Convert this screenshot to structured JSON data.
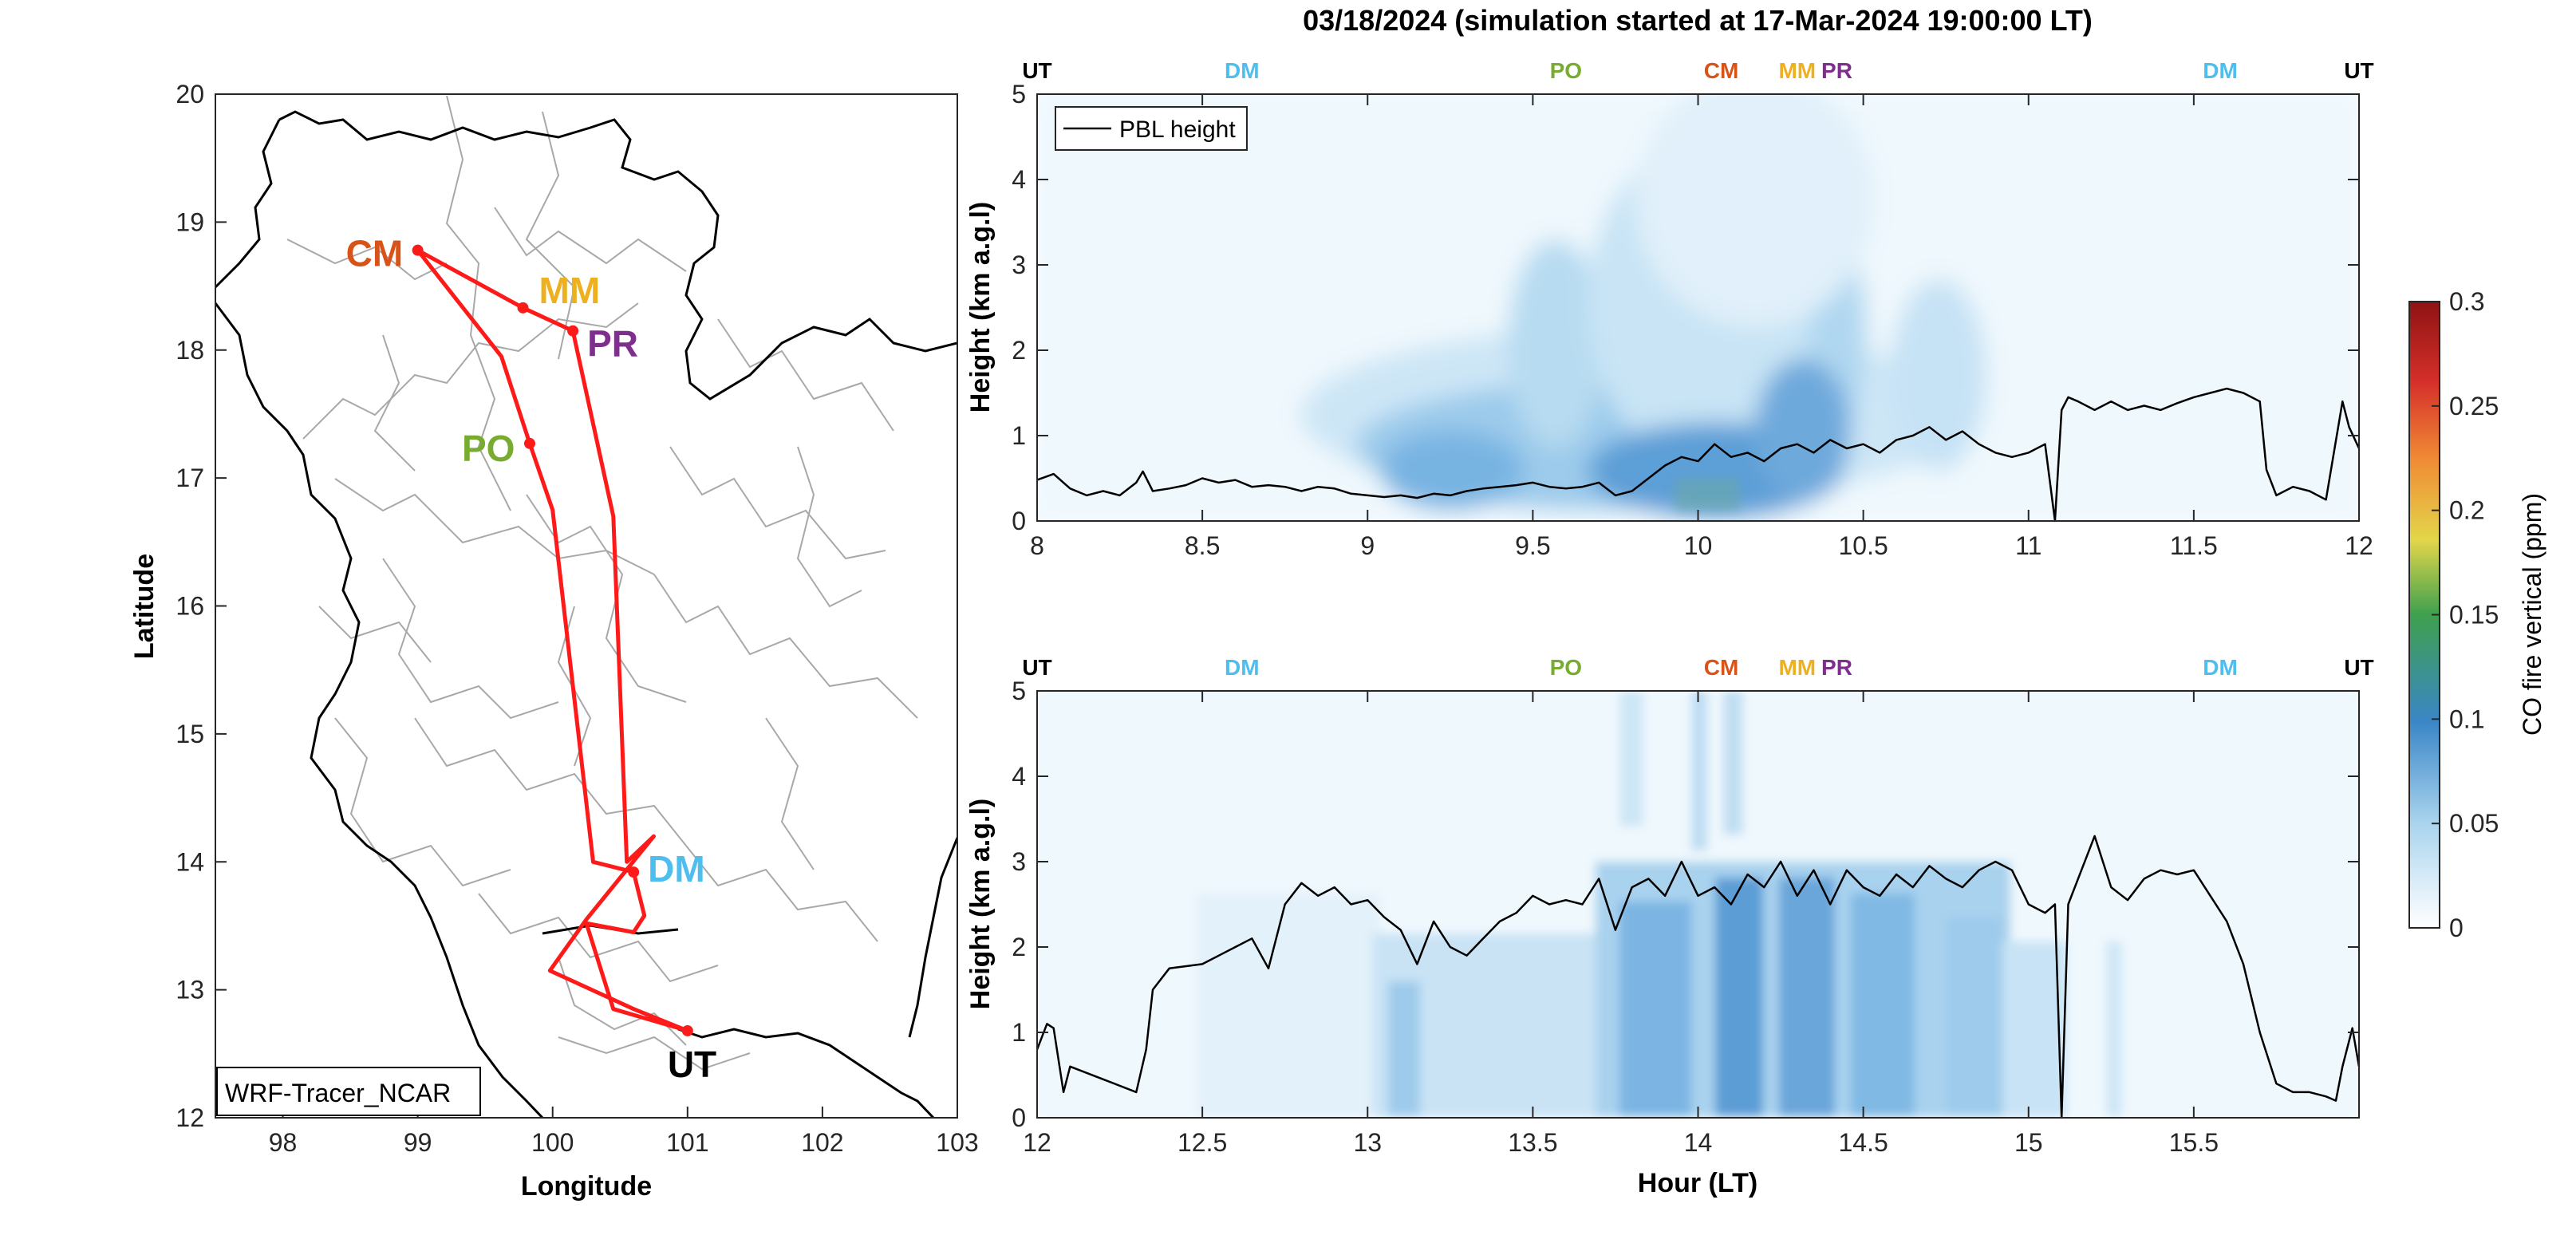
{
  "title": "03/18/2024 (simulation started at 17-Mar-2024 19:00:00 LT)",
  "colors": {
    "UT": "#000000",
    "DM": "#4DBEEE",
    "PO": "#77AC30",
    "CM": "#D95319",
    "MM": "#EDB120",
    "PR": "#7E2F8E",
    "route": "#ff1a1a",
    "pbl": "#000000"
  },
  "chart_data": [
    {
      "type": "line",
      "panel": "map",
      "xlabel": "Longitude",
      "ylabel": "Latitude",
      "xlim": [
        97.5,
        103
      ],
      "ylim": [
        12,
        20
      ],
      "xticks": [
        "98",
        "99",
        "100",
        "101",
        "102",
        "103"
      ],
      "yticks": [
        "12",
        "13",
        "14",
        "15",
        "16",
        "17",
        "18",
        "19",
        "20"
      ],
      "annotation": "WRF-Tracer_NCAR",
      "sites": [
        {
          "name": "CM",
          "lon": 99.0,
          "lat": 18.78
        },
        {
          "name": "MM",
          "lon": 99.78,
          "lat": 18.33
        },
        {
          "name": "PR",
          "lon": 100.15,
          "lat": 18.15
        },
        {
          "name": "PO",
          "lon": 99.83,
          "lat": 17.27
        },
        {
          "name": "DM",
          "lon": 100.6,
          "lat": 13.92
        },
        {
          "name": "UT",
          "lon": 101.0,
          "lat": 12.68
        }
      ],
      "route": [
        [
          101.0,
          12.68
        ],
        [
          100.45,
          12.85
        ],
        [
          100.25,
          13.52
        ],
        [
          100.6,
          13.45
        ],
        [
          100.68,
          13.58
        ],
        [
          100.6,
          13.92
        ],
        [
          100.3,
          14.0
        ],
        [
          100.0,
          16.75
        ],
        [
          99.83,
          17.27
        ],
        [
          99.62,
          17.95
        ],
        [
          99.0,
          18.78
        ],
        [
          99.78,
          18.33
        ],
        [
          100.15,
          18.15
        ],
        [
          100.45,
          16.7
        ],
        [
          100.55,
          14.0
        ],
        [
          100.75,
          14.2
        ],
        [
          100.25,
          13.55
        ],
        [
          99.98,
          13.15
        ],
        [
          100.6,
          12.85
        ],
        [
          101.0,
          12.68
        ]
      ]
    },
    {
      "type": "heatmap",
      "panel": "top",
      "ylabel": "Height (km a.g.l)",
      "xlim": [
        8,
        12
      ],
      "ylim": [
        0,
        5
      ],
      "xticks": [
        "8",
        "8.5",
        "9",
        "9.5",
        "10",
        "10.5",
        "11",
        "11.5",
        "12"
      ],
      "yticks": [
        "0",
        "1",
        "2",
        "3",
        "4",
        "5"
      ],
      "legend": "PBL height",
      "site_markers": [
        {
          "name": "UT",
          "x": 8.0
        },
        {
          "name": "DM",
          "x": 8.62
        },
        {
          "name": "PO",
          "x": 9.6
        },
        {
          "name": "CM",
          "x": 10.07
        },
        {
          "name": "MM",
          "x": 10.3
        },
        {
          "name": "PR",
          "x": 10.42
        },
        {
          "name": "DM",
          "x": 11.58
        },
        {
          "name": "UT",
          "x": 12.0
        }
      ],
      "pbl": {
        "x": [
          8.0,
          8.05,
          8.1,
          8.15,
          8.2,
          8.25,
          8.3,
          8.32,
          8.35,
          8.4,
          8.45,
          8.5,
          8.55,
          8.6,
          8.65,
          8.7,
          8.75,
          8.8,
          8.85,
          8.9,
          8.95,
          9.0,
          9.05,
          9.1,
          9.15,
          9.2,
          9.25,
          9.3,
          9.35,
          9.4,
          9.45,
          9.5,
          9.55,
          9.6,
          9.65,
          9.7,
          9.75,
          9.8,
          9.85,
          9.9,
          9.95,
          10.0,
          10.05,
          10.1,
          10.15,
          10.2,
          10.25,
          10.3,
          10.35,
          10.4,
          10.45,
          10.5,
          10.55,
          10.6,
          10.65,
          10.7,
          10.75,
          10.8,
          10.85,
          10.9,
          10.95,
          11.0,
          11.05,
          11.08,
          11.1,
          11.12,
          11.15,
          11.2,
          11.25,
          11.3,
          11.35,
          11.4,
          11.45,
          11.5,
          11.55,
          11.6,
          11.65,
          11.7,
          11.72,
          11.75,
          11.8,
          11.85,
          11.9,
          11.95,
          11.97,
          12.0
        ],
        "y": [
          0.48,
          0.55,
          0.38,
          0.3,
          0.35,
          0.3,
          0.45,
          0.58,
          0.35,
          0.38,
          0.42,
          0.5,
          0.45,
          0.48,
          0.4,
          0.42,
          0.4,
          0.35,
          0.4,
          0.38,
          0.32,
          0.3,
          0.28,
          0.3,
          0.27,
          0.32,
          0.3,
          0.35,
          0.38,
          0.4,
          0.42,
          0.45,
          0.4,
          0.38,
          0.4,
          0.45,
          0.3,
          0.35,
          0.5,
          0.65,
          0.75,
          0.7,
          0.9,
          0.75,
          0.8,
          0.7,
          0.85,
          0.9,
          0.8,
          0.95,
          0.85,
          0.9,
          0.8,
          0.95,
          1.0,
          1.1,
          0.95,
          1.05,
          0.9,
          0.8,
          0.75,
          0.8,
          0.9,
          0.0,
          1.3,
          1.45,
          1.4,
          1.3,
          1.4,
          1.3,
          1.35,
          1.3,
          1.38,
          1.45,
          1.5,
          1.55,
          1.5,
          1.4,
          0.6,
          0.3,
          0.4,
          0.35,
          0.25,
          1.4,
          1.1,
          0.85
        ]
      }
    },
    {
      "type": "heatmap",
      "panel": "bottom",
      "xlabel": "Hour (LT)",
      "ylabel": "Height (km a.g.l)",
      "xlim": [
        12,
        16
      ],
      "ylim": [
        0,
        5
      ],
      "xticks": [
        "12",
        "12.5",
        "13",
        "13.5",
        "14",
        "14.5",
        "15",
        "15.5"
      ],
      "yticks": [
        "0",
        "1",
        "2",
        "3",
        "4",
        "5"
      ],
      "site_markers": [
        {
          "name": "UT",
          "x": 12.0
        },
        {
          "name": "DM",
          "x": 12.62
        },
        {
          "name": "PO",
          "x": 13.6
        },
        {
          "name": "CM",
          "x": 14.07
        },
        {
          "name": "MM",
          "x": 14.3
        },
        {
          "name": "PR",
          "x": 14.42
        },
        {
          "name": "DM",
          "x": 15.58
        },
        {
          "name": "UT",
          "x": 16.0
        }
      ],
      "pbl": {
        "x": [
          12.0,
          12.03,
          12.05,
          12.08,
          12.1,
          12.2,
          12.3,
          12.33,
          12.35,
          12.4,
          12.5,
          12.55,
          12.6,
          12.65,
          12.7,
          12.75,
          12.8,
          12.85,
          12.9,
          12.95,
          13.0,
          13.05,
          13.1,
          13.15,
          13.2,
          13.25,
          13.3,
          13.35,
          13.4,
          13.45,
          13.5,
          13.55,
          13.6,
          13.65,
          13.7,
          13.75,
          13.8,
          13.85,
          13.9,
          13.95,
          14.0,
          14.05,
          14.1,
          14.15,
          14.2,
          14.25,
          14.3,
          14.35,
          14.4,
          14.45,
          14.5,
          14.55,
          14.6,
          14.65,
          14.7,
          14.75,
          14.8,
          14.85,
          14.9,
          14.95,
          15.0,
          15.05,
          15.08,
          15.1,
          15.12,
          15.15,
          15.2,
          15.25,
          15.3,
          15.35,
          15.4,
          15.45,
          15.5,
          15.55,
          15.6,
          15.65,
          15.7,
          15.75,
          15.8,
          15.85,
          15.9,
          15.93,
          15.95,
          15.98,
          16.0
        ],
        "y": [
          0.8,
          1.1,
          1.05,
          0.3,
          0.6,
          0.45,
          0.3,
          0.8,
          1.5,
          1.75,
          1.8,
          1.9,
          2.0,
          2.1,
          1.75,
          2.5,
          2.75,
          2.6,
          2.7,
          2.5,
          2.55,
          2.35,
          2.2,
          1.8,
          2.3,
          2.0,
          1.9,
          2.1,
          2.3,
          2.4,
          2.6,
          2.5,
          2.55,
          2.5,
          2.8,
          2.2,
          2.7,
          2.8,
          2.6,
          3.0,
          2.6,
          2.7,
          2.5,
          2.85,
          2.7,
          3.0,
          2.6,
          2.9,
          2.5,
          2.9,
          2.7,
          2.6,
          2.85,
          2.7,
          2.95,
          2.8,
          2.7,
          2.9,
          3.0,
          2.9,
          2.5,
          2.4,
          2.5,
          0.0,
          2.5,
          2.8,
          3.3,
          2.7,
          2.55,
          2.8,
          2.9,
          2.85,
          2.9,
          2.6,
          2.3,
          1.8,
          1.0,
          0.4,
          0.3,
          0.3,
          0.25,
          0.2,
          0.6,
          1.05,
          0.6
        ]
      }
    },
    {
      "type": "heatmap",
      "panel": "colorbar",
      "label": "CO fire vertical (ppm)",
      "range": [
        0,
        0.3
      ],
      "ticks": [
        "0",
        "0.05",
        "0.1",
        "0.15",
        "0.2",
        "0.25",
        "0.3"
      ]
    }
  ]
}
